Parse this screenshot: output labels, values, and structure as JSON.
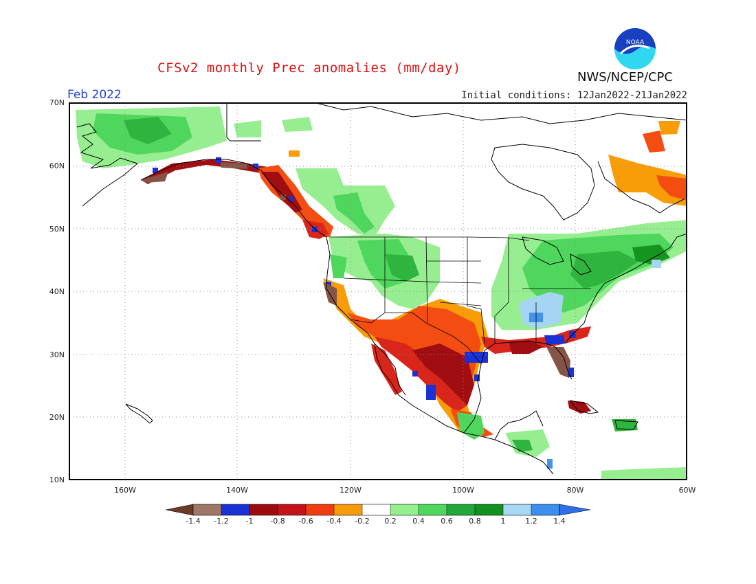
{
  "header": {
    "title": "CFSv2 monthly Prec anomalies (mm/day)",
    "month": "Feb 2022",
    "initial_conditions": "Initial conditions: 12Jan2022-21Jan2022",
    "agency": "NWS/NCEP/CPC",
    "logo_text": "NOAA"
  },
  "axes": {
    "lat_labels": [
      "70N",
      "60N",
      "50N",
      "40N",
      "30N",
      "20N",
      "10N"
    ],
    "lon_labels": [
      "160W",
      "140W",
      "120W",
      "100W",
      "80W",
      "60W"
    ]
  },
  "colorbar": {
    "labels": [
      "-1.4",
      "-1.2",
      "-1",
      "-0.8",
      "-0.6",
      "-0.4",
      "-0.2",
      "0.2",
      "0.4",
      "0.6",
      "0.8",
      "1",
      "1.2",
      "1.4"
    ],
    "colors": [
      "#6b3b27",
      "#a07868",
      "#1a31d6",
      "#9b0c10",
      "#c4121a",
      "#f03c10",
      "#f79b08",
      "#ffffff",
      "#94f08e",
      "#4dd85c",
      "#22a83a",
      "#13901e",
      "#a9d7f6",
      "#3c8fee",
      "#2f6ee8"
    ]
  },
  "palette": {
    "brown": "#855446",
    "blue_dark": "#1a31d6",
    "red_dark": "#a00e12",
    "red": "#d9261c",
    "orange_red": "#f44d12",
    "orange": "#f89d08",
    "green_light": "#96ee90",
    "green": "#4fd75d",
    "green_mid": "#2fb43f",
    "green_dark": "#159520",
    "blue_light": "#a6d5f4",
    "blue_mid": "#4293ec"
  }
}
